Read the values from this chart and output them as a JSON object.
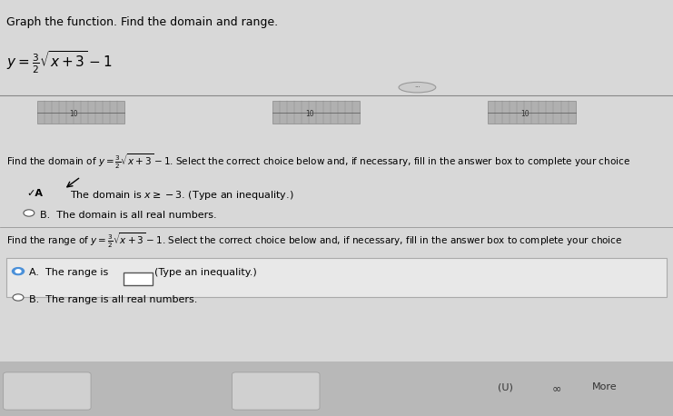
{
  "title": "Graph the function. Find the domain and range.",
  "function_label": "y = \\frac{3}{2}\\sqrt{x+3} - 1",
  "function_simple": "y = 3/2 * sqrt(x+3) - 1",
  "domain_question": "Find the domain of y = \\frac{3}{2}\\sqrt{x+3} - 1. Select the correct choice below and, if necessary, fill in the answer box to complete your choice",
  "range_question": "Find the range of y = \\frac{3}{2}\\sqrt{x+3} - 1. Select the correct choice below and, if necessary, fill in the answer box to complete your choice",
  "domain_answer_A": "The domain is  x\\geq -3 . (Type an inequality.)",
  "domain_answer_B": "The domain is all real numbers.",
  "domain_selected": "A",
  "range_answer_A": "The range is       (Type an inequality.)",
  "range_answer_B": "The range is all real numbers.",
  "range_selected": "A",
  "graph_xrange": [
    -13,
    10
  ],
  "graph_yrange": [
    -10,
    10
  ],
  "graph_x_tick_label": "10",
  "bg_color": "#d8d8d8",
  "text_color": "#000000",
  "highlight_color": "#f5f5b0",
  "radio_selected_color": "#4a90d9",
  "bottom_bar_color": "#c0c0c0"
}
